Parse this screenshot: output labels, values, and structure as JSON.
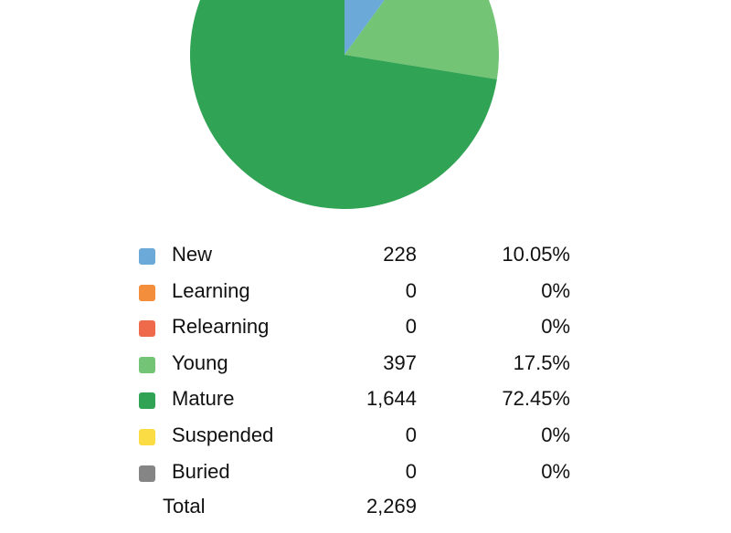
{
  "chart_data": {
    "type": "pie",
    "slices": [
      {
        "label": "New",
        "count": "228",
        "percent": "10.05%",
        "value": 228,
        "color": "#6aa9d8"
      },
      {
        "label": "Learning",
        "count": "0",
        "percent": "0%",
        "value": 0,
        "color": "#f28e3c"
      },
      {
        "label": "Relearning",
        "count": "0",
        "percent": "0%",
        "value": 0,
        "color": "#ef6a4b"
      },
      {
        "label": "Young",
        "count": "397",
        "percent": "17.5%",
        "value": 397,
        "color": "#74c476"
      },
      {
        "label": "Mature",
        "count": "1,644",
        "percent": "72.45%",
        "value": 1644,
        "color": "#31a354"
      },
      {
        "label": "Suspended",
        "count": "0",
        "percent": "0%",
        "value": 0,
        "color": "#fbdc45"
      },
      {
        "label": "Buried",
        "count": "0",
        "percent": "0%",
        "value": 0,
        "color": "#858585"
      }
    ],
    "total_label": "Total",
    "total_value": "2,269",
    "legend_position": "bottom"
  }
}
